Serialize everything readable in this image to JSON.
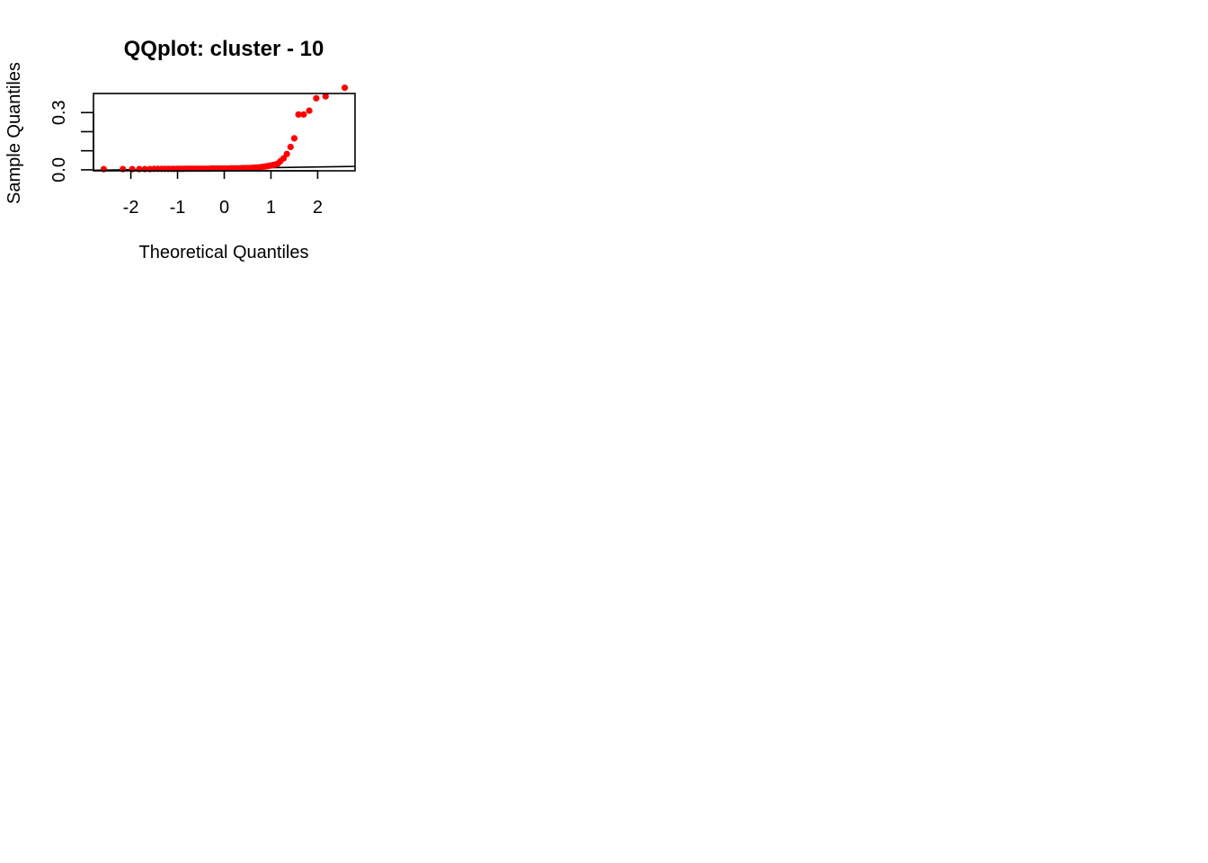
{
  "chart_data": {
    "type": "scatter",
    "title": "QQplot: cluster - 10",
    "xlabel": "Theoretical Quantiles",
    "ylabel": "Sample Quantiles",
    "xlim": [
      -2.8,
      2.8
    ],
    "ylim": [
      -0.005,
      0.4
    ],
    "x_ticks": [
      -2,
      -1,
      0,
      1,
      2
    ],
    "x_tick_labels": [
      "-2",
      "-1",
      "0",
      "1",
      "2"
    ],
    "y_ticks": [
      0.0,
      0.1,
      0.2,
      0.3
    ],
    "y_tick_labels": [
      "0.0",
      "",
      "",
      "0.3"
    ],
    "point_color": "#ff0000",
    "line_color": "#000000",
    "reference_line": {
      "x": [
        -2.8,
        2.8
      ],
      "y": [
        -0.002,
        0.018
      ]
    },
    "points": {
      "x": [
        -2.58,
        -2.17,
        -1.97,
        -1.82,
        -1.7,
        -1.59,
        -1.5,
        -1.42,
        -1.34,
        -1.27,
        -1.2,
        -1.13,
        -1.07,
        -1.0,
        -0.94,
        -0.88,
        -0.82,
        -0.76,
        -0.7,
        -0.64,
        -0.58,
        -0.52,
        -0.46,
        -0.4,
        -0.34,
        -0.28,
        -0.22,
        -0.16,
        -0.1,
        -0.04,
        0.02,
        0.08,
        0.14,
        0.2,
        0.26,
        0.32,
        0.38,
        0.44,
        0.5,
        0.56,
        0.62,
        0.68,
        0.74,
        0.8,
        0.86,
        0.92,
        0.98,
        1.04,
        1.1,
        1.15,
        1.2,
        1.27,
        1.34,
        1.42,
        1.5,
        1.59,
        1.7,
        1.82,
        1.97,
        2.17,
        2.58
      ],
      "y": [
        0.004,
        0.004,
        0.004,
        0.004,
        0.004,
        0.004,
        0.005,
        0.005,
        0.005,
        0.005,
        0.005,
        0.005,
        0.005,
        0.005,
        0.005,
        0.005,
        0.006,
        0.006,
        0.006,
        0.006,
        0.006,
        0.006,
        0.006,
        0.006,
        0.006,
        0.007,
        0.007,
        0.007,
        0.007,
        0.007,
        0.007,
        0.007,
        0.008,
        0.008,
        0.008,
        0.008,
        0.009,
        0.009,
        0.009,
        0.01,
        0.011,
        0.012,
        0.013,
        0.015,
        0.017,
        0.019,
        0.022,
        0.025,
        0.028,
        0.033,
        0.045,
        0.06,
        0.083,
        0.12,
        0.165,
        0.29,
        0.29,
        0.31,
        0.375,
        0.385,
        0.43
      ]
    }
  }
}
